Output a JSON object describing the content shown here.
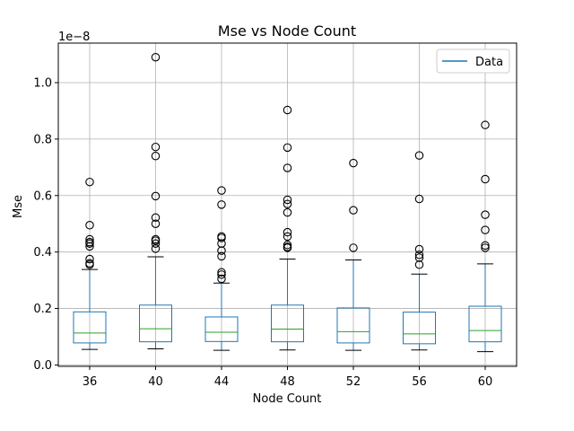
{
  "chart_data": {
    "type": "box",
    "title": "Mse vs Node Count",
    "xlabel": "Node Count",
    "ylabel": "Mse",
    "y_offset_label": "1e−8",
    "ylim": [
      -0.005,
      1.14
    ],
    "y_ticks": [
      0.0,
      0.2,
      0.4,
      0.6,
      0.8,
      1.0
    ],
    "y_tick_labels": [
      "0.0",
      "0.2",
      "0.4",
      "0.6",
      "0.8",
      "1.0"
    ],
    "grid": true,
    "legend": {
      "position": "top-right",
      "entries": [
        "Data"
      ]
    },
    "colors": {
      "box": "#1f77b4",
      "median": "#2ca02c",
      "whisker": "#000000",
      "grid": "#b0b0b0"
    },
    "categories": [
      "36",
      "40",
      "44",
      "48",
      "52",
      "56",
      "60"
    ],
    "boxes": [
      {
        "label": "36",
        "whislo": 0.055,
        "q1": 0.078,
        "med": 0.113,
        "q3": 0.188,
        "whishi": 0.338,
        "fliers": [
          0.355,
          0.36,
          0.375,
          0.42,
          0.43,
          0.435,
          0.445,
          0.495,
          0.648
        ]
      },
      {
        "label": "40",
        "whislo": 0.057,
        "q1": 0.082,
        "med": 0.128,
        "q3": 0.212,
        "whishi": 0.383,
        "fliers": [
          0.412,
          0.43,
          0.44,
          0.445,
          0.5,
          0.522,
          0.598,
          0.74,
          0.772,
          1.09
        ]
      },
      {
        "label": "44",
        "whislo": 0.052,
        "q1": 0.083,
        "med": 0.116,
        "q3": 0.17,
        "whishi": 0.29,
        "fliers": [
          0.305,
          0.32,
          0.328,
          0.385,
          0.405,
          0.43,
          0.45,
          0.455,
          0.568,
          0.618
        ]
      },
      {
        "label": "48",
        "whislo": 0.053,
        "q1": 0.082,
        "med": 0.127,
        "q3": 0.212,
        "whishi": 0.375,
        "fliers": [
          0.415,
          0.418,
          0.425,
          0.455,
          0.47,
          0.54,
          0.57,
          0.585,
          0.698,
          0.77,
          0.903
        ]
      },
      {
        "label": "52",
        "whislo": 0.052,
        "q1": 0.078,
        "med": 0.118,
        "q3": 0.202,
        "whishi": 0.372,
        "fliers": [
          0.415,
          0.548,
          0.715
        ]
      },
      {
        "label": "56",
        "whislo": 0.053,
        "q1": 0.075,
        "med": 0.11,
        "q3": 0.187,
        "whishi": 0.322,
        "fliers": [
          0.355,
          0.38,
          0.39,
          0.41,
          0.588,
          0.742
        ]
      },
      {
        "label": "60",
        "whislo": 0.047,
        "q1": 0.082,
        "med": 0.122,
        "q3": 0.208,
        "whishi": 0.358,
        "fliers": [
          0.415,
          0.423,
          0.478,
          0.532,
          0.658,
          0.85
        ]
      }
    ]
  }
}
